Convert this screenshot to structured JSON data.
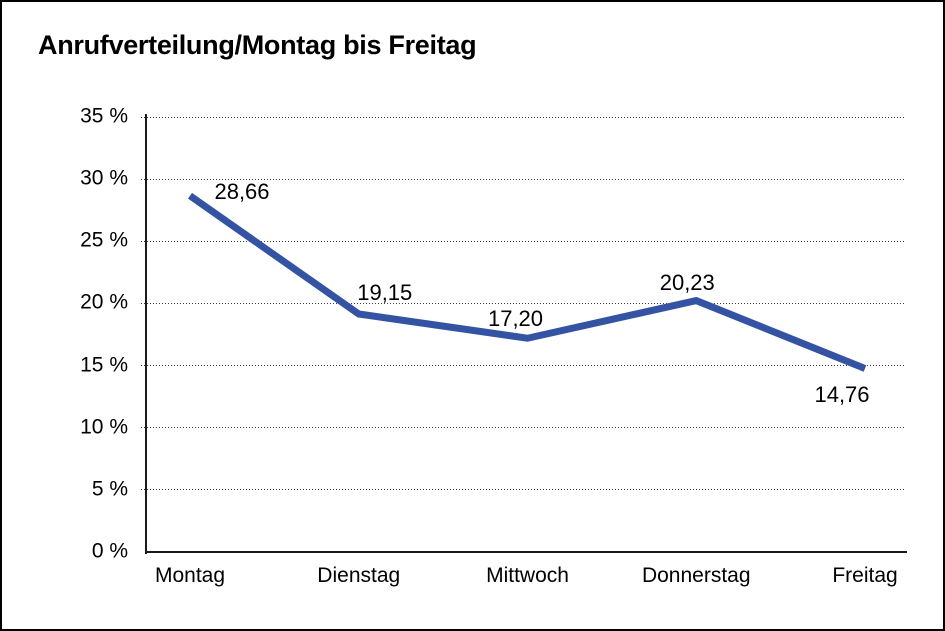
{
  "chart_data": {
    "type": "line",
    "title": "Anrufverteilung/Montag bis Freitag",
    "categories": [
      "Montag",
      "Dienstag",
      "Mittwoch",
      "Donnerstag",
      "Freitag"
    ],
    "values": [
      28.66,
      19.15,
      17.2,
      20.23,
      14.76
    ],
    "value_labels": [
      "28,66",
      "19,15",
      "17,20",
      "20,23",
      "14,76"
    ],
    "xlabel": "",
    "ylabel": "",
    "y_tick_labels": [
      "0 %",
      "5 %",
      "10 %",
      "15 %",
      "20 %",
      "25 %",
      "30 %",
      "35 %"
    ],
    "ylim": [
      0,
      35
    ],
    "y_step": 5,
    "grid": "horizontal dotted, solid bottom axis, solid left axis",
    "legend": "none",
    "line_color": "#3454A3",
    "axis_color": "#1a1a1a",
    "text_color": "#000000",
    "background_color": "#ffffff"
  }
}
